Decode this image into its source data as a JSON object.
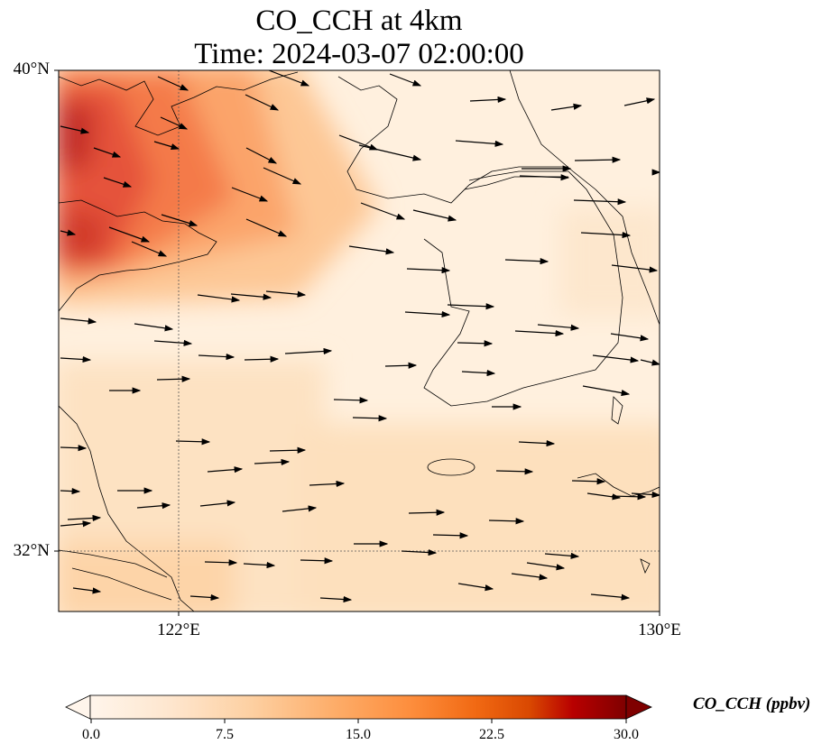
{
  "title_line1": "CO_CCH at 4km",
  "title_line2": "Time: 2024-03-07 02:00:00",
  "lat_labels": [
    "40°N",
    "32°N"
  ],
  "lon_labels": [
    "122°E",
    "130°E"
  ],
  "colorbar": {
    "label": "CO_CCH (ppbv)",
    "ticks": [
      "0.0",
      "7.5",
      "15.0",
      "22.5",
      "30.0"
    ],
    "colors": [
      "#fff5eb",
      "#fee6ce",
      "#fdd0a2",
      "#fdae6b",
      "#fd8d3c",
      "#f16913",
      "#d94801",
      "#a63603",
      "#7f2704"
    ]
  }
}
